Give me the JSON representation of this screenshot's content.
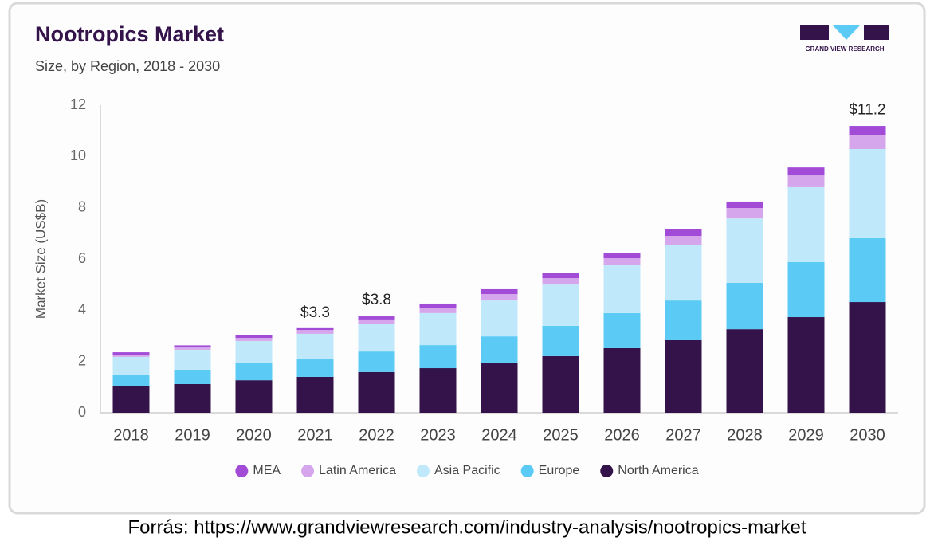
{
  "chart_data": {
    "type": "stacked-bar",
    "title": "Nootropics Market",
    "subtitle": "Size, by Region, 2018 - 2030",
    "y_label": "Market Size (US$B)",
    "brand": "GRAND VIEW RESEARCH",
    "source": "Forrás: https://www.grandviewresearch.com/industry-analysis/nootropics-market",
    "categories": [
      "2018",
      "2019",
      "2020",
      "2021",
      "2022",
      "2023",
      "2024",
      "2025",
      "2026",
      "2027",
      "2028",
      "2029",
      "2030"
    ],
    "series": [
      {
        "name": "North America",
        "color": "#33134a",
        "values": [
          1.03,
          1.12,
          1.27,
          1.4,
          1.59,
          1.74,
          1.96,
          2.21,
          2.52,
          2.83,
          3.26,
          3.73,
          4.32
        ]
      },
      {
        "name": "Europe",
        "color": "#5bcbf5",
        "values": [
          0.46,
          0.56,
          0.66,
          0.71,
          0.8,
          0.9,
          1.02,
          1.18,
          1.37,
          1.55,
          1.81,
          2.15,
          2.49
        ]
      },
      {
        "name": "Asia Pacific",
        "color": "#bfe9fa",
        "values": [
          0.69,
          0.78,
          0.87,
          0.97,
          1.09,
          1.25,
          1.4,
          1.61,
          1.86,
          2.18,
          2.51,
          2.92,
          3.48
        ]
      },
      {
        "name": "Latin America",
        "color": "#d6a6ec",
        "values": [
          0.09,
          0.09,
          0.12,
          0.15,
          0.16,
          0.21,
          0.25,
          0.25,
          0.28,
          0.34,
          0.41,
          0.46,
          0.53
        ]
      },
      {
        "name": "MEA",
        "color": "#a24bd6",
        "values": [
          0.09,
          0.08,
          0.1,
          0.07,
          0.12,
          0.16,
          0.19,
          0.19,
          0.19,
          0.25,
          0.25,
          0.31,
          0.37
        ]
      }
    ],
    "totals": [
      null,
      null,
      null,
      3.3,
      3.8,
      null,
      null,
      null,
      null,
      null,
      null,
      null,
      11.2
    ],
    "total_labels": [
      null,
      null,
      null,
      "$3.3",
      "$3.8",
      null,
      null,
      null,
      null,
      null,
      null,
      null,
      "$11.2"
    ],
    "ylim": [
      0,
      12
    ],
    "yticks": [
      0,
      2,
      4,
      6,
      8,
      10,
      12
    ],
    "grid": false,
    "legend": "bottom"
  }
}
